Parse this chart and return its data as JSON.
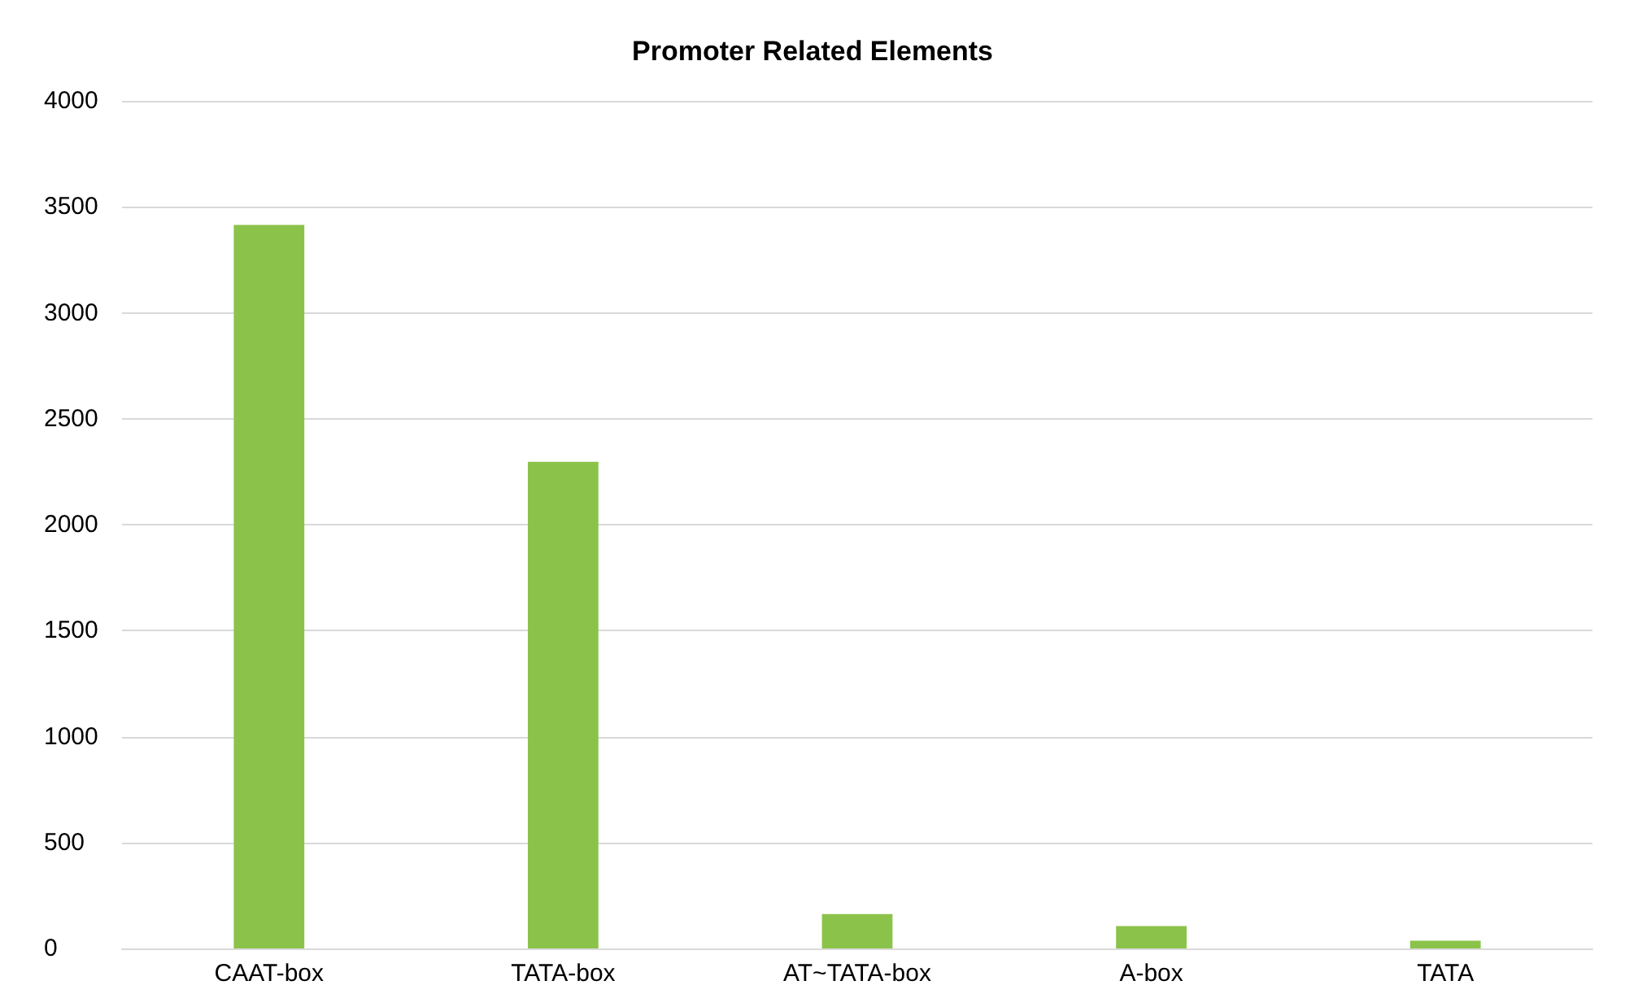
{
  "chart_data": {
    "type": "bar",
    "title": "Promoter Related Elements",
    "categories": [
      "CAAT-box",
      "TATA-box",
      "AT~TATA-box",
      "A-box",
      "TATA"
    ],
    "values": [
      3415,
      2297,
      162,
      106,
      36
    ],
    "color": "#8bc34a",
    "ylim": [
      0,
      4000
    ],
    "yticks": [
      0,
      500,
      1000,
      1500,
      2000,
      2500,
      3000,
      3500,
      4000
    ],
    "grid": "y"
  }
}
